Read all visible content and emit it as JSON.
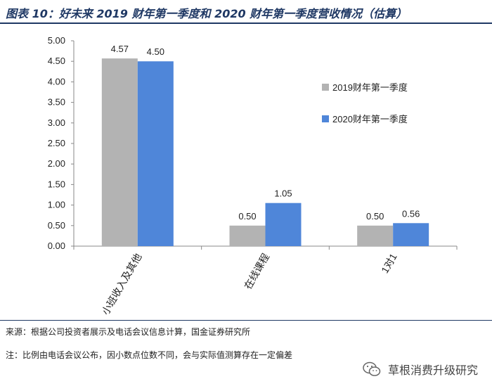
{
  "title": "图表 10：好未来 2019 财年第一季度和 2020 财年第一季度营收情况（估算）",
  "chart_data": {
    "type": "bar",
    "categories": [
      "小班收入及其他",
      "在线课程",
      "1对1"
    ],
    "series": [
      {
        "name": "2019财年第一季度",
        "values": [
          4.57,
          0.5,
          0.5
        ],
        "value_labels": [
          "4.57",
          "0.50",
          "0.50"
        ],
        "color": "#b3b3b3"
      },
      {
        "name": "2020财年第一季度",
        "values": [
          4.5,
          1.05,
          0.56
        ],
        "value_labels": [
          "4.50",
          "1.05",
          "0.56"
        ],
        "color": "#4f86d9"
      }
    ],
    "ylim": [
      0,
      5
    ],
    "yticks": [
      "0.00",
      "0.50",
      "1.00",
      "1.50",
      "2.00",
      "2.50",
      "3.00",
      "3.50",
      "4.00",
      "4.50",
      "5.00"
    ],
    "legend_position": "top-right",
    "xlabel": "",
    "ylabel": ""
  },
  "source": "来源：根据公司投资者展示及电话会议信息计算，国金证券研究所",
  "footnote": "注：比例由电话会议公布，因小数点位数不同，会与实际值测算存在一定偏差",
  "watermark": {
    "icon": "wechat-icon",
    "text": "草根消费升级研究"
  }
}
